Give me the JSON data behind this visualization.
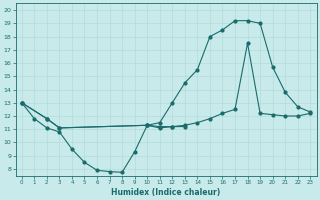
{
  "title": "",
  "xlabel": "Humidex (Indice chaleur)",
  "ylabel": "",
  "bg_color": "#c8eaea",
  "grid_color": "#b0d8d8",
  "line_color": "#1a6b6b",
  "xlim": [
    -0.5,
    23.5
  ],
  "ylim": [
    7.5,
    20.5
  ],
  "xticks": [
    0,
    1,
    2,
    3,
    4,
    5,
    6,
    7,
    8,
    9,
    10,
    11,
    12,
    13,
    14,
    15,
    16,
    17,
    18,
    19,
    20,
    21,
    22,
    23
  ],
  "yticks": [
    8,
    9,
    10,
    11,
    12,
    13,
    14,
    15,
    16,
    17,
    18,
    19,
    20
  ],
  "series1_x": [
    0,
    1,
    2,
    3,
    4,
    5,
    6,
    7,
    8,
    9,
    10,
    11,
    12,
    13
  ],
  "series1_y": [
    13.0,
    11.8,
    11.1,
    10.8,
    9.5,
    8.5,
    7.9,
    7.8,
    7.75,
    9.3,
    11.3,
    11.1,
    11.2,
    11.2
  ],
  "series2_x": [
    0,
    2,
    3,
    10,
    11,
    12,
    13,
    14,
    15,
    16,
    17,
    18,
    19,
    20,
    21,
    22,
    23
  ],
  "series2_y": [
    13.0,
    11.8,
    11.1,
    11.3,
    11.2,
    11.2,
    11.3,
    11.5,
    11.8,
    12.2,
    12.5,
    17.5,
    12.2,
    12.1,
    12.0,
    12.0,
    12.2
  ],
  "series3_x": [
    0,
    2,
    3,
    10,
    11,
    12,
    13,
    14,
    15,
    16,
    17,
    18,
    19,
    20,
    21,
    22,
    23
  ],
  "series3_y": [
    13.0,
    11.8,
    11.1,
    11.3,
    11.5,
    13.0,
    14.5,
    15.5,
    18.0,
    18.5,
    19.2,
    19.2,
    19.0,
    15.7,
    13.8,
    12.7,
    12.3
  ]
}
